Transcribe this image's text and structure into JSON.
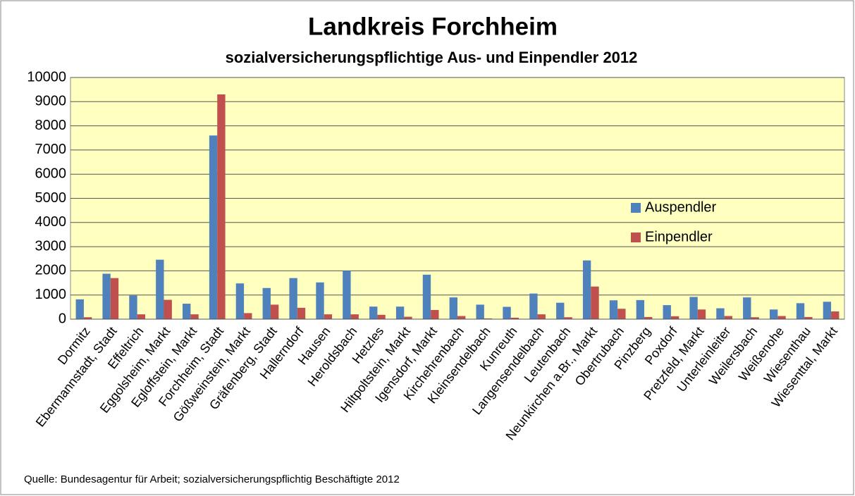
{
  "chart_data": {
    "type": "bar",
    "title": "Landkreis Forchheim",
    "subtitle": "sozialversicherungspflichtige Aus- und Einpendler 2012",
    "source": "Quelle: Bundesagentur für Arbeit; sozialversicherungspflichtig Beschäftigte 2012",
    "categories": [
      "Dormitz",
      "Ebermannstadt, Stadt",
      "Effeltrich",
      "Eggolsheim, Markt",
      "Egloffstein, Markt",
      "Forchheim, Stadt",
      "Gößweinstein, Markt",
      "Gräfenberg, Stadt",
      "Hallerndorf",
      "Hausen",
      "Heroldsbach",
      "Hetzles",
      "Hiltpoltstein, Markt",
      "Igensdorf, Markt",
      "Kirchehrenbach",
      "Kleinsendelbach",
      "Kunreuth",
      "Langensendelbach",
      "Leutenbach",
      "Neunkirchen a.Br., Markt",
      "Obertrubach",
      "Pinzberg",
      "Poxdorf",
      "Pretzfeld, Markt",
      "Unterleinleiter",
      "Weilersbach",
      "Weißenohe",
      "Wiesenthau",
      "Wiesenttal, Markt"
    ],
    "series": [
      {
        "name": "Auspendler",
        "color": "#4f81bd",
        "values": [
          820,
          1880,
          980,
          2460,
          640,
          7600,
          1480,
          1290,
          1700,
          1520,
          2000,
          520,
          520,
          1840,
          900,
          600,
          510,
          1060,
          680,
          2430,
          780,
          790,
          580,
          920,
          450,
          900,
          400,
          660,
          720
        ]
      },
      {
        "name": "Einpendler",
        "color": "#c0504d",
        "values": [
          80,
          1700,
          200,
          800,
          200,
          9300,
          250,
          600,
          470,
          200,
          200,
          180,
          100,
          380,
          130,
          30,
          60,
          200,
          80,
          1350,
          430,
          90,
          120,
          400,
          130,
          80,
          130,
          90,
          320
        ]
      }
    ],
    "ylim": [
      0,
      10000
    ],
    "yticks": [
      0,
      1000,
      2000,
      3000,
      4000,
      5000,
      6000,
      7000,
      8000,
      9000,
      10000
    ],
    "grid": true,
    "legend": "right",
    "plot_background": "#ffffc0"
  }
}
